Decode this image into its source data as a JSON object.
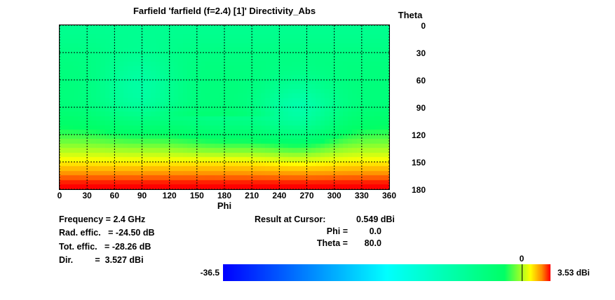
{
  "chart_data": {
    "type": "heatmap",
    "title": "Farfield 'farfield (f=2.4) [1]' Directivity_Abs",
    "xlabel": "Phi",
    "ylabel": "Theta",
    "x_ticks": [
      "0",
      "30",
      "60",
      "90",
      "120",
      "150",
      "180",
      "210",
      "240",
      "270",
      "300",
      "330",
      "360"
    ],
    "y_ticks": [
      "0",
      "30",
      "60",
      "90",
      "120",
      "150",
      "180"
    ],
    "xlim": [
      0,
      360
    ],
    "ylim": [
      0,
      180
    ],
    "grid": true,
    "colorscale": [
      "#0000ff",
      "#00ffff",
      "#00ff66",
      "#ffff00",
      "#ff8800",
      "#ff0000"
    ],
    "range": [
      -36.5,
      3.53
    ],
    "unit": "dBi",
    "colorbar_min_label": "-36.5",
    "colorbar_max_label": "3.53 dBi",
    "colorbar_marker_label": "0",
    "colorbar_marker_value": 0
  },
  "info": {
    "frequency_label": "Frequency = 2.4 GHz",
    "rad_effic_label": "Rad. effic.   = -24.50 dB",
    "tot_effic_label": "Tot. effic.   = -28.26 dB",
    "dir_label": "Dir.         =  3.527 dBi"
  },
  "cursor": {
    "result_label": "Result at Cursor:",
    "result_value": "0.549 dBi",
    "phi_label": "Phi =",
    "phi_value": "0.0",
    "theta_label": "Theta =",
    "theta_value": "80.0"
  }
}
